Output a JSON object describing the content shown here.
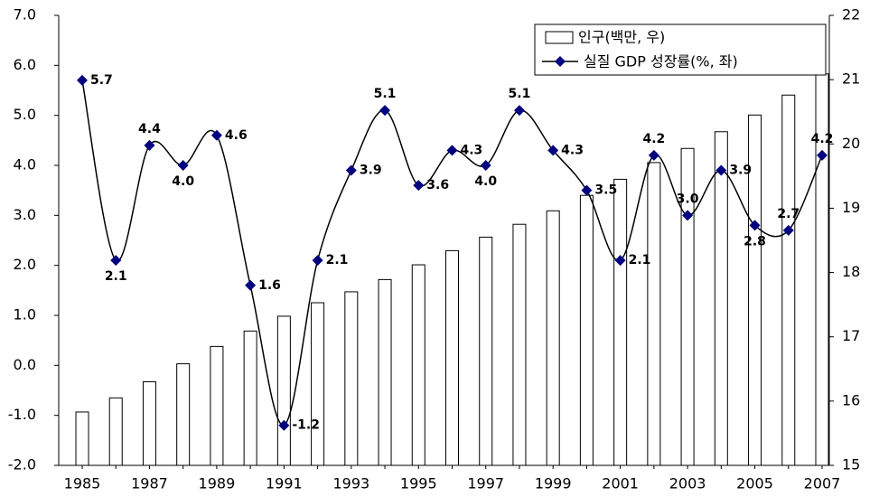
{
  "chart_data": {
    "type": "bar-line",
    "categories": [
      "1985",
      null,
      "1987",
      null,
      "1989",
      null,
      "1991",
      null,
      "1993",
      null,
      "1995",
      null,
      "1997",
      null,
      "1999",
      null,
      "2001",
      null,
      "2003",
      null,
      "2005",
      null,
      "2007"
    ],
    "series": [
      {
        "name": "인구(백만, 우)",
        "type": "bar",
        "axis": "y2",
        "color": "#ffffff",
        "values": [
          15.83,
          16.05,
          16.3,
          16.58,
          16.85,
          17.09,
          17.32,
          17.53,
          17.7,
          17.89,
          18.12,
          18.34,
          18.55,
          18.75,
          18.96,
          19.2,
          19.45,
          19.71,
          19.93,
          20.19,
          20.45,
          20.76,
          21.09
        ]
      },
      {
        "name": "실질 GDP 성장률(%, 좌)",
        "type": "line",
        "color": "#000080",
        "values": [
          5.7,
          2.1,
          4.4,
          4.0,
          4.6,
          1.6,
          -1.2,
          2.1,
          3.9,
          5.1,
          3.6,
          4.3,
          4.0,
          5.1,
          4.3,
          3.5,
          2.1,
          4.2,
          3.0,
          3.9,
          2.8,
          2.7,
          4.2
        ],
        "value_labels": [
          "5.7",
          "2.1",
          "4.4",
          "4.0",
          "4.6",
          "1.6",
          "-1.2",
          "2.1",
          "3.9",
          "5.1",
          "3.6",
          "4.3",
          "4.0",
          "5.1",
          "4.3",
          "3.5",
          "2.1",
          "4.2",
          "3.0",
          "3.9",
          "2.8",
          "2.7",
          "4.2"
        ]
      }
    ],
    "ylim": [
      -2,
      7
    ],
    "yticks": [
      {
        "value": -2,
        "label": "-2.0"
      },
      {
        "value": -1,
        "label": "-1.0"
      },
      {
        "value": 0,
        "label": "0.0"
      },
      {
        "value": 1,
        "label": "1.0"
      },
      {
        "value": 2,
        "label": "2.0"
      },
      {
        "value": 3,
        "label": "3.0"
      },
      {
        "value": 4,
        "label": "4.0"
      },
      {
        "value": 5,
        "label": "5.0"
      },
      {
        "value": 6,
        "label": "6.0"
      },
      {
        "value": 7,
        "label": "7.0"
      }
    ],
    "y2lim": [
      15,
      22
    ],
    "y2ticks": [
      15,
      16,
      17,
      18,
      19,
      20,
      21,
      22
    ],
    "legend": "top-right"
  }
}
